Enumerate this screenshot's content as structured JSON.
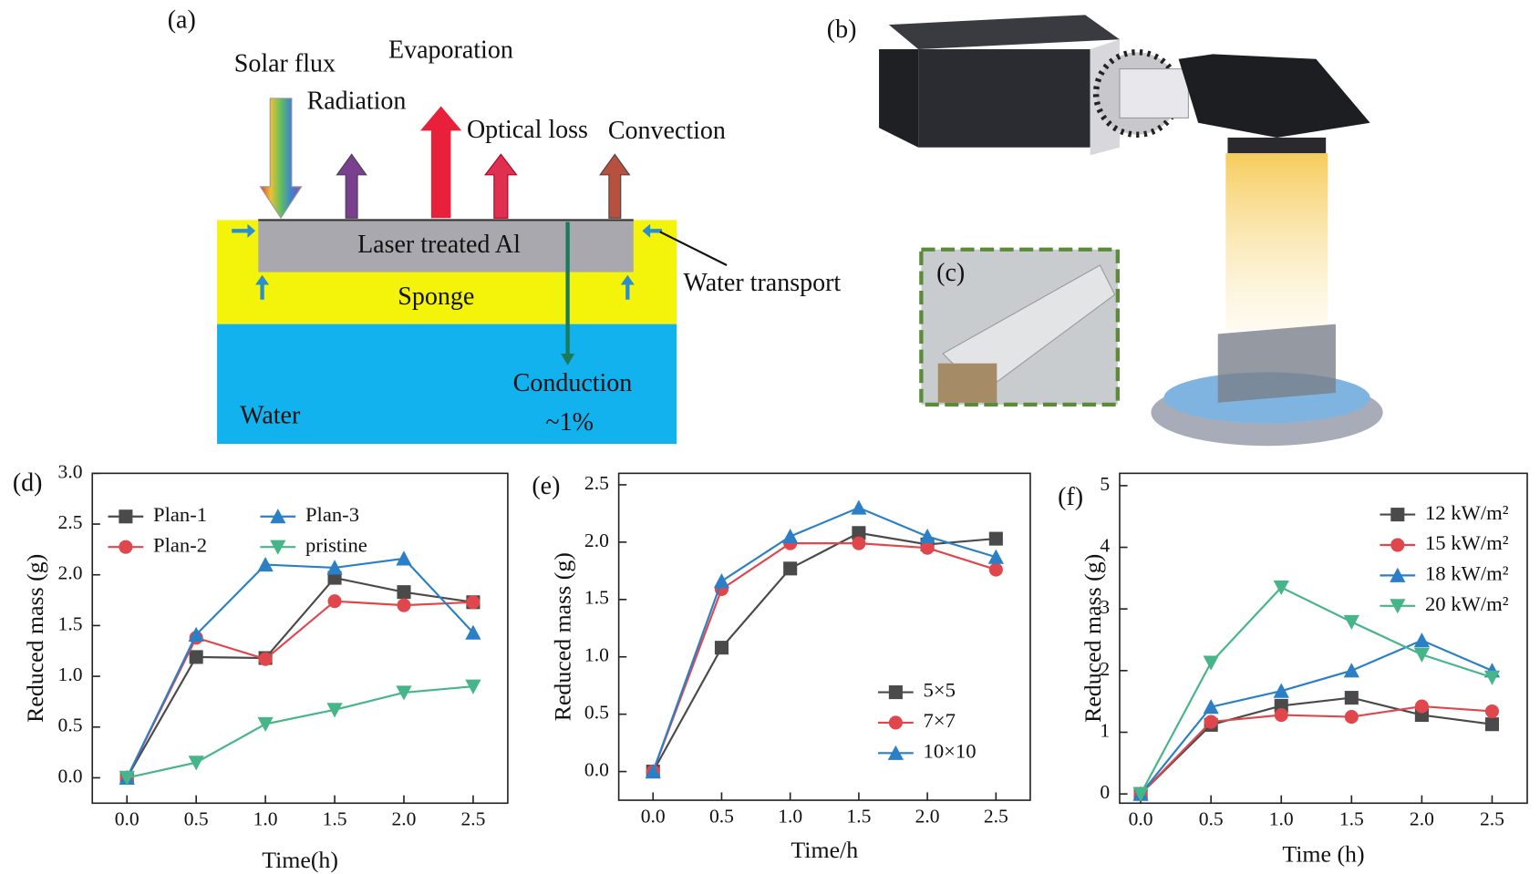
{
  "schematic": {
    "a": {
      "label": "(a)",
      "solar_flux": "Solar flux",
      "radiation": "Radiation",
      "evaporation": "Evaporation",
      "optical_loss": "Optical loss",
      "convection": "Convection",
      "laser_al": "Laser treated Al",
      "sponge": "Sponge",
      "water_transport": "Water transport",
      "conduction": "Conduction",
      "percent": "~1%",
      "water": "Water"
    },
    "b": {
      "label": "(b)"
    },
    "c": {
      "label": "(c)"
    }
  },
  "chart_data": [
    {
      "type": "line",
      "label": "(d)",
      "ylabel": "Reduced mass (g)",
      "xlabel": "Time(h)",
      "x": [
        0,
        0.5,
        1.0,
        1.5,
        2.0,
        2.5
      ],
      "xlim": [
        -0.25,
        2.75
      ],
      "ylim": [
        -0.25,
        3.0
      ],
      "xticks": [
        {
          "value": 0,
          "label": "0.0"
        },
        {
          "value": 0.5,
          "label": "0.5"
        },
        {
          "value": 1.0,
          "label": "1.0"
        },
        {
          "value": 1.5,
          "label": "1.5"
        },
        {
          "value": 2.0,
          "label": "2.0"
        },
        {
          "value": 2.5,
          "label": "2.5"
        }
      ],
      "yticks": [
        {
          "value": 0,
          "label": "0.0"
        },
        {
          "value": 0.5,
          "label": "0.5"
        },
        {
          "value": 1.0,
          "label": "1.0"
        },
        {
          "value": 1.5,
          "label": "1.5"
        },
        {
          "value": 2.0,
          "label": "2.0"
        },
        {
          "value": 2.5,
          "label": "2.5"
        },
        {
          "value": 3.0,
          "label": "3.0"
        }
      ],
      "legend": "upper left",
      "legend_columns": 2,
      "series": [
        {
          "name": "Plan-1",
          "color": "#4a4a4a",
          "marker": "square",
          "values": [
            0,
            1.19,
            1.18,
            1.97,
            1.83,
            1.73
          ]
        },
        {
          "name": "Plan-2",
          "color": "#e0474c",
          "marker": "circle",
          "values": [
            0,
            1.38,
            1.17,
            1.74,
            1.7,
            1.73
          ]
        },
        {
          "name": "Plan-3",
          "color": "#2a7fc6",
          "marker": "triangle-up",
          "values": [
            0,
            1.41,
            2.1,
            2.07,
            2.16,
            1.43
          ]
        },
        {
          "name": "pristine",
          "color": "#46b58a",
          "marker": "triangle-down",
          "values": [
            0,
            0.15,
            0.53,
            0.67,
            0.84,
            0.9
          ]
        }
      ]
    },
    {
      "type": "line",
      "label": "(e)",
      "ylabel": "Reduced mass (g)",
      "xlabel": "Time/h",
      "x": [
        0,
        0.5,
        1.0,
        1.5,
        2.0,
        2.5
      ],
      "xlim": [
        -0.25,
        2.75
      ],
      "ylim": [
        -0.25,
        2.6
      ],
      "xticks": [
        {
          "value": 0,
          "label": "0.0"
        },
        {
          "value": 0.5,
          "label": "0.5"
        },
        {
          "value": 1.0,
          "label": "1.0"
        },
        {
          "value": 1.5,
          "label": "1.5"
        },
        {
          "value": 2.0,
          "label": "2.0"
        },
        {
          "value": 2.5,
          "label": "2.5"
        }
      ],
      "yticks": [
        {
          "value": 0,
          "label": "0.0"
        },
        {
          "value": 0.5,
          "label": "0.5"
        },
        {
          "value": 1.0,
          "label": "1.0"
        },
        {
          "value": 1.5,
          "label": "1.5"
        },
        {
          "value": 2.0,
          "label": "2.0"
        },
        {
          "value": 2.5,
          "label": "2.5"
        }
      ],
      "legend": "lower right",
      "legend_columns": 1,
      "series": [
        {
          "name": "5×5",
          "color": "#4a4a4a",
          "marker": "square",
          "values": [
            0,
            1.08,
            1.77,
            2.08,
            1.98,
            2.03
          ]
        },
        {
          "name": "7×7",
          "color": "#e0474c",
          "marker": "circle",
          "values": [
            0,
            1.59,
            1.99,
            1.99,
            1.95,
            1.76
          ]
        },
        {
          "name": "10×10",
          "color": "#2a7fc6",
          "marker": "triangle-up",
          "values": [
            0,
            1.66,
            2.05,
            2.3,
            2.05,
            1.87
          ]
        }
      ]
    },
    {
      "type": "line",
      "label": "(f)",
      "ylabel": "Reduced mass (g)",
      "xlabel": "Time (h)",
      "x": [
        0,
        0.5,
        1.0,
        1.5,
        2.0,
        2.5
      ],
      "xlim": [
        -0.15,
        2.75
      ],
      "ylim": [
        -0.15,
        5.2
      ],
      "xticks": [
        {
          "value": 0,
          "label": "0.0"
        },
        {
          "value": 0.5,
          "label": "0.5"
        },
        {
          "value": 1.0,
          "label": "1.0"
        },
        {
          "value": 1.5,
          "label": "1.5"
        },
        {
          "value": 2.0,
          "label": "2.0"
        },
        {
          "value": 2.5,
          "label": "2.5"
        }
      ],
      "yticks": [
        0,
        1,
        2,
        3,
        4,
        5
      ],
      "legend": "upper right",
      "legend_columns": 1,
      "series": [
        {
          "name": "12 kW/m²",
          "color": "#4a4a4a",
          "marker": "square",
          "values": [
            0,
            1.12,
            1.43,
            1.56,
            1.28,
            1.13
          ]
        },
        {
          "name": "15 kW/m²",
          "color": "#e0474c",
          "marker": "circle",
          "values": [
            0,
            1.17,
            1.28,
            1.25,
            1.42,
            1.34
          ]
        },
        {
          "name": "18 kW/m²",
          "color": "#2a7fc6",
          "marker": "triangle-up",
          "values": [
            0,
            1.41,
            1.67,
            2.0,
            2.49,
            2.0
          ]
        },
        {
          "name": "20 kW/m²",
          "color": "#46b58a",
          "marker": "triangle-down",
          "values": [
            0,
            2.13,
            3.35,
            2.79,
            2.26,
            1.89
          ]
        }
      ]
    }
  ]
}
